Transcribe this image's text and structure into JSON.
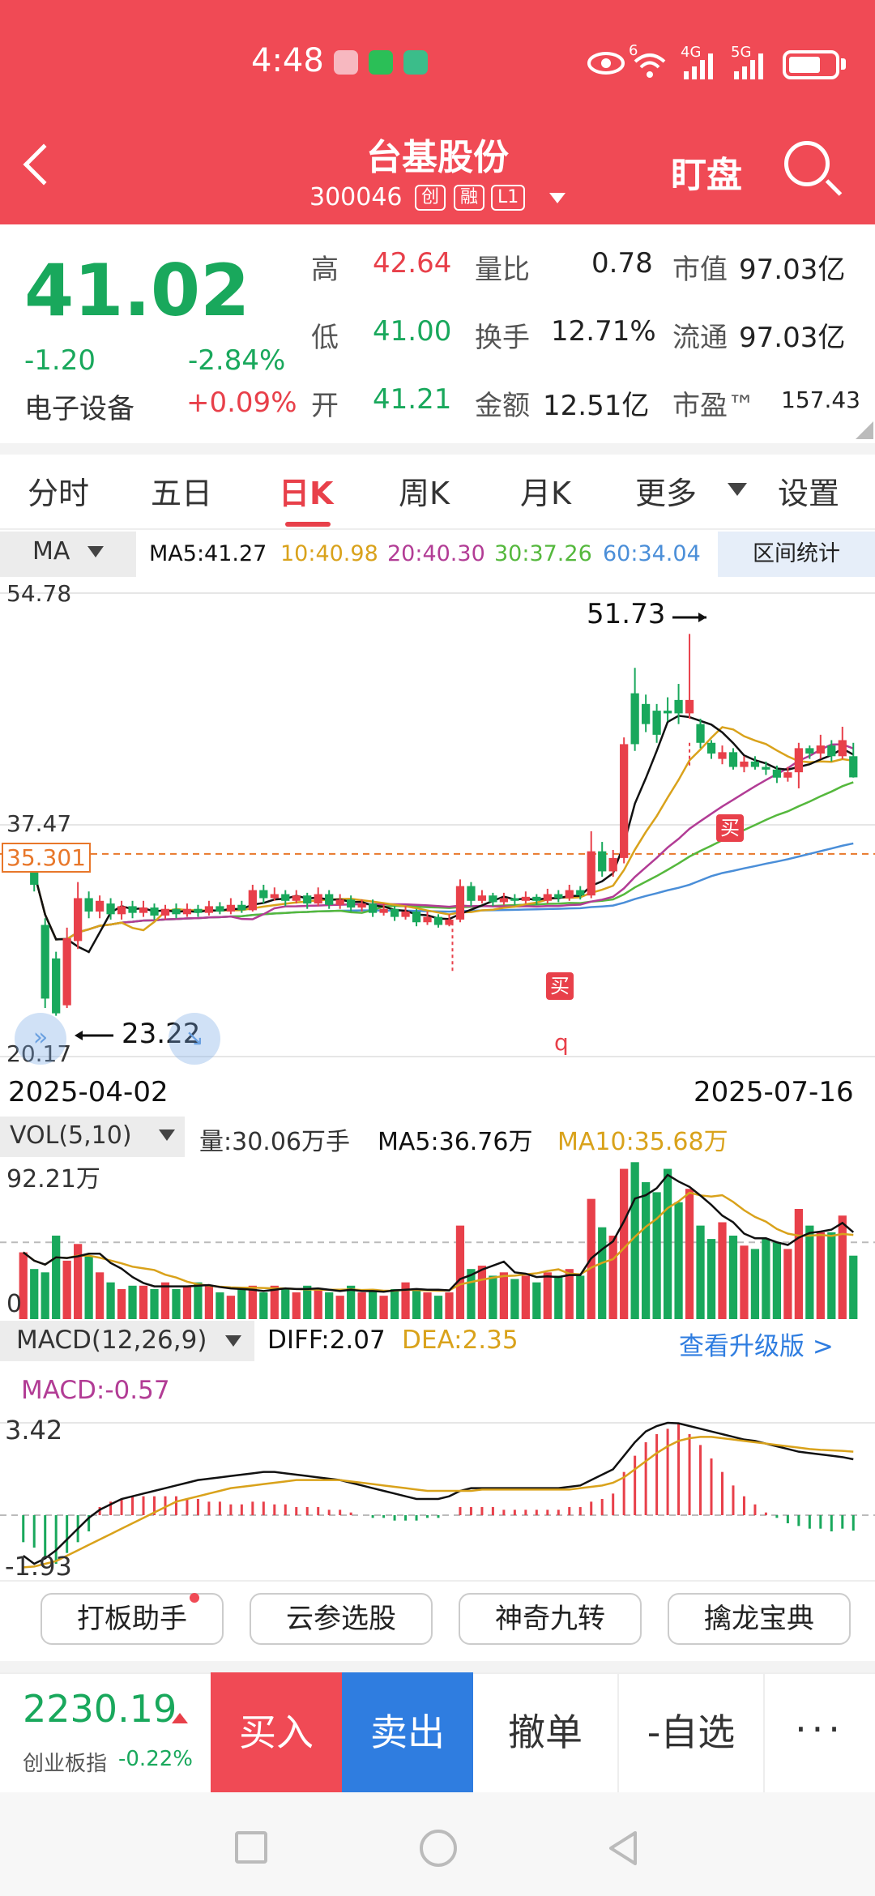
{
  "status_bar": {
    "time": "4:48",
    "network_left": "6",
    "network_4g": "4G",
    "network_5g": "5G",
    "icons": [
      "huawei-app-icon",
      "wechat-icon",
      "app-icon",
      "eye-icon",
      "wifi-icon",
      "signal-icon",
      "battery-icon"
    ]
  },
  "header": {
    "stock_name": "台基股份",
    "stock_code": "300046",
    "tags": [
      "创",
      "融",
      "L1"
    ],
    "watch_label": "盯盘"
  },
  "quote": {
    "price": "41.02",
    "change": "-1.20",
    "change_pct": "-2.84%",
    "sector": "电子设备",
    "sector_pct": "+0.09%",
    "high_label": "高",
    "high": "42.64",
    "low_label": "低",
    "low": "41.00",
    "open_label": "开",
    "open": "41.21",
    "vol_ratio_label": "量比",
    "vol_ratio": "0.78",
    "turnover_label": "换手",
    "turnover": "12.71%",
    "amount_label": "金额",
    "amount": "12.51亿",
    "mcap_label": "市值",
    "mcap": "97.03亿",
    "float_label": "流通",
    "float_cap": "97.03亿",
    "pe_label": "市盈™",
    "pe": "157.43"
  },
  "period_tabs": [
    "分时",
    "五日",
    "日K",
    "周K",
    "月K",
    "更多",
    "设置"
  ],
  "active_tab": "日K",
  "ma_row": {
    "label": "MA",
    "ma5": "MA5:41.27",
    "ma10": "10:40.98",
    "ma20": "20:40.30",
    "ma30": "30:37.26",
    "ma60": "60:34.04",
    "range_btn": "区间统计"
  },
  "kline": {
    "y_top": "54.78",
    "y_mid": "37.47",
    "y_bottom": "20.17",
    "ref_price": "35.301",
    "max_marker": "51.73",
    "min_marker": "23.22",
    "buy_marker": "买",
    "q_marker": "q",
    "date_start": "2025-04-02",
    "date_end": "2025-07-16"
  },
  "volume": {
    "label": "VOL(5,10)",
    "qty": "量:30.06万手",
    "ma5": "MA5:36.76万",
    "ma10": "MA10:35.68万",
    "y_top": "92.21万",
    "y_zero": "0"
  },
  "macd": {
    "label": "MACD(12,26,9)",
    "diff": "DIFF:2.07",
    "dea": "DEA:2.35",
    "upgrade": "查看升级版 >",
    "macd_val": "MACD:-0.57",
    "y_top": "3.42",
    "y_bottom": "-1.93"
  },
  "tools": [
    "打板助手",
    "云参选股",
    "神奇九转",
    "擒龙宝典"
  ],
  "bottom": {
    "index_val": "2230.19",
    "index_name": "创业板指",
    "index_chg": "-0.22%",
    "buy": "买入",
    "sell": "卖出",
    "cancel": "撤单",
    "fav": "-自选",
    "more": "···"
  },
  "colors": {
    "brand_red": "#f04a55",
    "up_red": "#e8404a",
    "down_green": "#19a85c",
    "ma5": "#111111",
    "ma10": "#d9a21b",
    "ma20": "#b23c95",
    "ma30": "#55b83d",
    "ma60": "#4a8ed8"
  },
  "chart_data": {
    "type": "candlestick",
    "x_range": [
      "2025-04-02",
      "2025-07-16"
    ],
    "ylim": [
      20.17,
      54.78
    ],
    "max_point": 51.73,
    "min_point": 23.22,
    "last_close": 41.02,
    "ma": {
      "MA5": 41.27,
      "MA10": 40.98,
      "MA20": 40.3,
      "MA30": 37.26,
      "MA60": 34.04
    },
    "candles": [
      [
        1,
        35.0,
        34.8,
        35.2,
        34.2
      ],
      [
        0,
        34.8,
        33.0,
        35.0,
        32.5
      ],
      [
        0,
        30.0,
        24.5,
        30.5,
        23.8
      ],
      [
        0,
        27.5,
        23.4,
        28.0,
        23.22
      ],
      [
        1,
        24.0,
        29.0,
        29.8,
        23.8
      ],
      [
        1,
        28.8,
        32.0,
        33.2,
        28.2
      ],
      [
        0,
        32.0,
        31.0,
        32.5,
        30.5
      ],
      [
        1,
        31.0,
        31.8,
        32.2,
        30.5
      ],
      [
        0,
        31.6,
        30.8,
        32.0,
        30.4
      ],
      [
        1,
        30.8,
        31.4,
        31.8,
        30.4
      ],
      [
        0,
        31.4,
        30.9,
        31.8,
        30.5
      ],
      [
        1,
        30.9,
        31.3,
        31.8,
        30.6
      ],
      [
        0,
        31.3,
        30.7,
        31.6,
        30.4
      ],
      [
        1,
        30.7,
        31.2,
        31.5,
        30.4
      ],
      [
        0,
        31.2,
        30.8,
        31.6,
        30.5
      ],
      [
        1,
        30.8,
        31.2,
        31.6,
        30.6
      ],
      [
        0,
        31.2,
        30.9,
        31.5,
        30.6
      ],
      [
        1,
        30.9,
        31.4,
        31.8,
        30.7
      ],
      [
        0,
        31.4,
        31.0,
        31.7,
        30.8
      ],
      [
        1,
        31.0,
        31.5,
        32.0,
        30.8
      ],
      [
        0,
        31.5,
        31.1,
        31.8,
        30.9
      ],
      [
        1,
        31.1,
        32.6,
        33.0,
        31.0
      ],
      [
        0,
        32.6,
        32.0,
        33.0,
        31.6
      ],
      [
        1,
        32.0,
        32.3,
        32.8,
        31.8
      ],
      [
        0,
        32.3,
        31.8,
        32.6,
        31.4
      ],
      [
        1,
        31.8,
        32.2,
        32.6,
        31.6
      ],
      [
        0,
        32.2,
        31.6,
        32.4,
        31.2
      ],
      [
        1,
        31.6,
        32.3,
        32.8,
        31.4
      ],
      [
        0,
        32.3,
        31.5,
        32.6,
        31.2
      ],
      [
        1,
        31.5,
        31.9,
        32.3,
        31.2
      ],
      [
        0,
        31.9,
        31.3,
        32.2,
        31.0
      ],
      [
        1,
        31.3,
        31.6,
        31.9,
        31.0
      ],
      [
        0,
        31.6,
        30.9,
        31.9,
        30.6
      ],
      [
        1,
        30.9,
        31.2,
        31.6,
        30.7
      ],
      [
        0,
        31.2,
        30.6,
        31.4,
        30.3
      ],
      [
        1,
        30.6,
        31.0,
        31.4,
        30.4
      ],
      [
        0,
        31.0,
        30.2,
        31.2,
        29.9
      ],
      [
        1,
        30.2,
        30.6,
        31.0,
        30.0
      ],
      [
        0,
        30.6,
        30.0,
        30.8,
        29.8
      ],
      [
        1,
        30.0,
        30.4,
        30.8,
        29.9
      ],
      [
        1,
        30.4,
        32.9,
        33.4,
        30.2
      ],
      [
        0,
        32.9,
        31.8,
        33.2,
        31.4
      ],
      [
        1,
        31.8,
        32.2,
        32.6,
        31.6
      ],
      [
        0,
        32.2,
        31.7,
        32.4,
        31.4
      ],
      [
        1,
        31.7,
        32.0,
        32.4,
        31.5
      ],
      [
        0,
        32.0,
        31.8,
        32.3,
        31.5
      ],
      [
        1,
        31.8,
        32.1,
        32.5,
        31.6
      ],
      [
        0,
        32.1,
        31.8,
        32.3,
        31.5
      ],
      [
        1,
        31.8,
        32.3,
        32.7,
        31.6
      ],
      [
        0,
        32.3,
        32.0,
        32.6,
        31.7
      ],
      [
        1,
        32.0,
        32.6,
        33.0,
        31.8
      ],
      [
        0,
        32.6,
        32.2,
        32.9,
        31.9
      ],
      [
        1,
        32.2,
        35.5,
        37.0,
        32.0
      ],
      [
        0,
        35.5,
        34.0,
        36.2,
        33.6
      ],
      [
        1,
        34.0,
        35.0,
        35.6,
        33.6
      ],
      [
        1,
        35.0,
        43.5,
        44.0,
        34.6
      ],
      [
        0,
        43.5,
        47.3,
        49.2,
        43.0
      ],
      [
        0,
        46.5,
        45.0,
        47.2,
        44.4
      ],
      [
        0,
        46.0,
        44.2,
        46.5,
        43.6
      ],
      [
        0,
        46.0,
        45.8,
        47.0,
        45.2
      ],
      [
        0,
        46.8,
        45.8,
        48.0,
        45.0
      ],
      [
        1,
        45.8,
        46.8,
        51.73,
        45.4
      ],
      [
        0,
        45.0,
        43.6,
        45.4,
        43.2
      ],
      [
        0,
        43.6,
        42.8,
        43.8,
        42.4
      ],
      [
        1,
        42.4,
        42.9,
        43.4,
        42.0
      ],
      [
        0,
        42.9,
        41.8,
        43.2,
        41.6
      ],
      [
        1,
        41.8,
        42.2,
        42.6,
        41.4
      ],
      [
        0,
        42.2,
        41.8,
        42.6,
        41.6
      ],
      [
        0,
        41.8,
        41.6,
        42.2,
        41.2
      ],
      [
        0,
        41.6,
        41.0,
        41.9,
        40.6
      ],
      [
        1,
        41.0,
        41.4,
        41.8,
        40.7
      ],
      [
        1,
        41.4,
        43.2,
        43.6,
        40.2
      ],
      [
        0,
        43.2,
        42.8,
        43.4,
        42.4
      ],
      [
        1,
        42.8,
        43.4,
        44.2,
        42.4
      ],
      [
        0,
        43.4,
        42.6,
        43.8,
        42.2
      ],
      [
        1,
        42.6,
        43.8,
        44.8,
        42.4
      ],
      [
        0,
        42.6,
        41.02,
        43.6,
        41.0
      ]
    ],
    "volume": [
      40,
      30,
      28,
      50,
      35,
      45,
      38,
      28,
      22,
      18,
      20,
      20,
      18,
      22,
      18,
      20,
      22,
      20,
      16,
      14,
      18,
      20,
      16,
      20,
      18,
      16,
      20,
      18,
      16,
      14,
      20,
      16,
      18,
      14,
      18,
      22,
      18,
      16,
      14,
      16,
      56,
      30,
      32,
      26,
      28,
      24,
      26,
      22,
      28,
      26,
      30,
      26,
      72,
      55,
      50,
      90,
      94,
      82,
      76,
      90,
      70,
      78,
      56,
      48,
      58,
      50,
      44,
      42,
      48,
      46,
      42,
      66,
      56,
      52,
      52,
      62,
      38
    ],
    "macd_bars": [
      -1.0,
      -1.2,
      -1.6,
      -1.8,
      -1.4,
      -1.0,
      -0.6,
      0.3,
      0.5,
      0.6,
      0.7,
      0.7,
      0.7,
      0.7,
      0.7,
      0.6,
      0.6,
      0.5,
      0.5,
      0.4,
      0.4,
      0.5,
      0.5,
      0.4,
      0.4,
      0.3,
      0.3,
      0.3,
      0.2,
      0.2,
      0.1,
      0.0,
      -0.1,
      -0.1,
      -0.2,
      -0.2,
      -0.2,
      -0.1,
      -0.1,
      0.0,
      0.3,
      0.3,
      0.3,
      0.3,
      0.2,
      0.2,
      0.2,
      0.2,
      0.2,
      0.2,
      0.3,
      0.3,
      0.5,
      0.6,
      0.8,
      1.6,
      2.2,
      2.7,
      3.0,
      3.2,
      3.4,
      3.0,
      2.6,
      2.1,
      1.6,
      1.1,
      0.7,
      0.4,
      0.1,
      -0.1,
      -0.3,
      -0.4,
      -0.5,
      -0.5,
      -0.6,
      -0.5,
      -0.57
    ],
    "series": [
      {
        "name": "DIFF",
        "values": [
          -1.5,
          -1.8,
          -1.6,
          -1.3,
          -0.9,
          -0.5,
          -0.1,
          0.2,
          0.4,
          0.6,
          0.7,
          0.8,
          0.9,
          1.0,
          1.1,
          1.2,
          1.3,
          1.35,
          1.4,
          1.45,
          1.5,
          1.55,
          1.6,
          1.6,
          1.55,
          1.5,
          1.45,
          1.4,
          1.35,
          1.3,
          1.2,
          1.1,
          1.0,
          0.9,
          0.8,
          0.7,
          0.6,
          0.6,
          0.6,
          0.7,
          0.9,
          1.0,
          1.0,
          1.0,
          1.0,
          1.0,
          1.0,
          1.0,
          1.0,
          1.0,
          1.05,
          1.1,
          1.3,
          1.5,
          1.7,
          2.2,
          2.7,
          3.1,
          3.3,
          3.42,
          3.4,
          3.3,
          3.2,
          3.1,
          3.0,
          2.9,
          2.8,
          2.75,
          2.65,
          2.55,
          2.45,
          2.35,
          2.3,
          2.25,
          2.2,
          2.15,
          2.07
        ]
      },
      {
        "name": "DEA",
        "values": [
          -1.93,
          -1.9,
          -1.8,
          -1.7,
          -1.5,
          -1.3,
          -1.1,
          -0.9,
          -0.7,
          -0.5,
          -0.3,
          -0.1,
          0.1,
          0.3,
          0.5,
          0.6,
          0.7,
          0.8,
          0.9,
          1.0,
          1.05,
          1.1,
          1.15,
          1.2,
          1.25,
          1.3,
          1.3,
          1.3,
          1.3,
          1.3,
          1.25,
          1.2,
          1.15,
          1.1,
          1.05,
          1.0,
          0.95,
          0.9,
          0.9,
          0.9,
          0.9,
          0.9,
          0.95,
          0.95,
          0.95,
          0.95,
          0.95,
          0.95,
          0.95,
          0.95,
          0.95,
          1.0,
          1.05,
          1.1,
          1.2,
          1.4,
          1.7,
          2.0,
          2.3,
          2.55,
          2.75,
          2.85,
          2.9,
          2.9,
          2.85,
          2.8,
          2.75,
          2.7,
          2.65,
          2.6,
          2.55,
          2.5,
          2.45,
          2.42,
          2.4,
          2.38,
          2.35
        ]
      }
    ]
  }
}
